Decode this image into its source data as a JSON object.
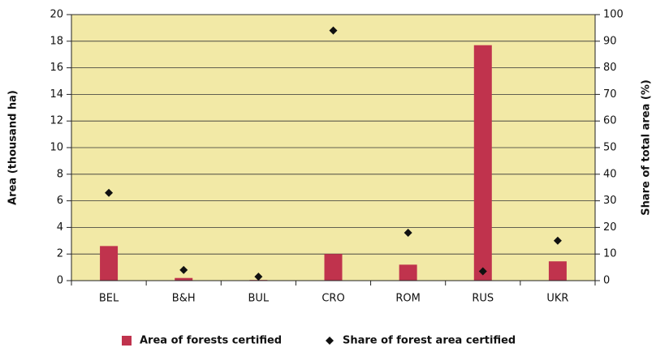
{
  "chart_data": {
    "type": "bar",
    "categories": [
      "BEL",
      "B&H",
      "BUL",
      "CRO",
      "ROM",
      "RUS",
      "UKR"
    ],
    "series": [
      {
        "name": "Area of forests certified",
        "type": "bar",
        "color": "#c0334d",
        "values": [
          2.6,
          0.2,
          0.05,
          2.0,
          1.2,
          17.7,
          1.45
        ]
      },
      {
        "name": "Share of forest area certified",
        "type": "scatter",
        "axis": "y2",
        "color": "#111111",
        "values": [
          33,
          4,
          1.5,
          94,
          18,
          3.5,
          15
        ]
      }
    ],
    "ylabel": "Area (thousand ha)",
    "y2label": "Share of total area (%)",
    "ylim": [
      0,
      20
    ],
    "yticks": [
      0,
      2,
      4,
      6,
      8,
      10,
      12,
      14,
      16,
      18,
      20
    ],
    "y2lim": [
      0,
      100
    ],
    "y2ticks": [
      0,
      10,
      20,
      30,
      40,
      50,
      60,
      70,
      80,
      90,
      100
    ],
    "grid": true,
    "legend": "bottom"
  }
}
